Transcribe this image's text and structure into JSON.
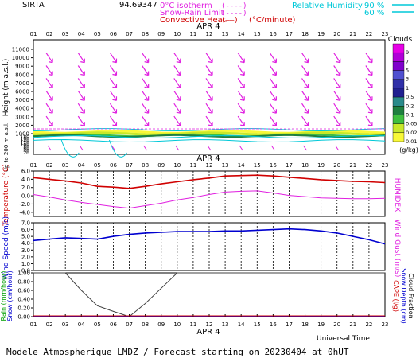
{
  "header": {
    "station": "SIRTA",
    "coords": "94.69347",
    "legend_iso": "0°C isotherm",
    "legend_snow": "Snow-Rain Limit",
    "legend_conv": "Convective Heat.",
    "legend_unit": "(°C/minute)",
    "rh_label": "Relative Humidity",
    "rh90": "90 %",
    "rh60": "60 %",
    "iso_sym": "(----)",
    "snow_sym": "(----)",
    "conv_sym": "(——)"
  },
  "hours": [
    "01",
    "02",
    "03",
    "04",
    "05",
    "06",
    "07",
    "08",
    "09",
    "10",
    "11",
    "12",
    "13",
    "14",
    "15",
    "16",
    "17",
    "18",
    "19",
    "20",
    "21",
    "22",
    "23"
  ],
  "date_label": "APR 4",
  "footer": {
    "title": "Modele Atmospherique LMDZ / Forecast starting on 20230404 at 0hUT",
    "universal_time": "Universal Time"
  },
  "chart_data": [
    {
      "type": "heatmap",
      "name": "clouds-wind-profile",
      "ylabel": "Height (m a.s.l.)",
      "ylabel2": "Up to 200 m a.s.l.",
      "yticks_upper": [
        "11000",
        "10000",
        "9000",
        "8000",
        "7000",
        "6000",
        "5000",
        "4000",
        "3000",
        "2000",
        "1000"
      ],
      "yticks_lower": [
        "180",
        "160",
        "140",
        "120",
        "100",
        "80",
        "60",
        "40",
        "20"
      ],
      "colorbar_title": "Clouds",
      "colorbar_unit": "(g/kg)",
      "colorbar_levels": [
        "9",
        "7",
        "5",
        "3",
        "1",
        "0.5",
        "0.2",
        "0.1",
        "0.05",
        "0.02",
        "0.01"
      ],
      "colorbar_colors": [
        "#e600e6",
        "#b000d8",
        "#7f00cc",
        "#5050d0",
        "#3030a8",
        "#202090",
        "#2a8a8a",
        "#1f7f3f",
        "#3fbf3f",
        "#c8e82a",
        "#f8f838"
      ],
      "wind_rows_m": [
        10000,
        8500,
        7000,
        5500,
        4000,
        2500
      ]
    },
    {
      "type": "line",
      "name": "temperature",
      "ylabel": "Temperature (°C)",
      "ylabel_right": "HUMIDEX",
      "yticks": [
        "6.0",
        "4.0",
        "2.0",
        "0.0",
        "-2.0",
        "-4.0"
      ],
      "ylim": [
        -5,
        6
      ],
      "x": [
        1,
        2,
        3,
        4,
        5,
        6,
        7,
        8,
        9,
        10,
        11,
        12,
        13,
        14,
        15,
        16,
        17,
        18,
        19,
        20,
        21,
        22,
        23
      ],
      "series": [
        {
          "values": [
            4.4,
            4.0,
            3.6,
            3.1,
            2.3,
            2.1,
            1.8,
            2.3,
            2.9,
            3.4,
            3.9,
            4.3,
            4.8,
            4.9,
            5.0,
            4.8,
            4.5,
            4.2,
            3.9,
            3.7,
            3.5,
            3.4,
            3.2
          ]
        },
        {
          "values": [
            0.3,
            -0.3,
            -1.0,
            -1.6,
            -2.1,
            -2.6,
            -3.0,
            -2.4,
            -1.8,
            -1.0,
            -0.4,
            0.3,
            0.9,
            1.1,
            1.2,
            0.7,
            0.1,
            -0.2,
            -0.5,
            -0.6,
            -0.7,
            -0.7,
            -0.6
          ]
        }
      ]
    },
    {
      "type": "line",
      "name": "wind-speed",
      "ylabel": "Wind Speed (m/s)",
      "ylabel_right": "Wind Gust (m/s)",
      "yticks": [
        "7.0",
        "6.0",
        "5.0",
        "4.0",
        "3.0",
        "2.0",
        "1.0",
        "0.0"
      ],
      "ylim": [
        0,
        7
      ],
      "x": [
        1,
        2,
        3,
        4,
        5,
        6,
        7,
        8,
        9,
        10,
        11,
        12,
        13,
        14,
        15,
        16,
        17,
        18,
        19,
        20,
        21,
        22,
        23
      ],
      "series": [
        {
          "values": [
            4.4,
            4.6,
            4.8,
            4.7,
            4.6,
            5.0,
            5.3,
            5.5,
            5.6,
            5.7,
            5.7,
            5.7,
            5.8,
            5.8,
            5.9,
            6.0,
            6.1,
            6.0,
            5.8,
            5.5,
            5.0,
            4.5,
            3.9
          ]
        }
      ]
    },
    {
      "type": "line",
      "name": "precipitation",
      "ylabel": "Rain (mm/hour)",
      "ylabel2": "Snow (cm/hour)",
      "ylabel_right": "CAPE (J/g)",
      "ylabel_right2": "Snow Depth (cm)",
      "ylabel_right3": "Cloud Fraction",
      "yticks": [
        "1.00",
        "0.80",
        "0.60",
        "0.40",
        "0.20",
        "0.00"
      ],
      "ylim": [
        0,
        1
      ],
      "x": [
        1,
        2,
        3,
        4,
        5,
        6,
        7,
        8,
        9,
        10,
        11,
        12,
        13,
        14,
        15,
        16,
        17,
        18,
        19,
        20,
        21,
        22,
        23
      ],
      "series": [
        {
          "values": [
            1.0,
            1.0,
            1.0,
            0.6,
            0.25,
            0.12,
            0.0,
            0.3,
            0.65,
            1.0,
            1.0,
            1.0,
            1.0,
            1.0,
            1.0,
            1.0,
            1.0,
            1.0,
            1.0,
            1.0,
            1.0,
            1.0,
            1.0
          ]
        },
        {
          "values": [
            0,
            0,
            0,
            0,
            0,
            0,
            0,
            0,
            0,
            0,
            0,
            0,
            0,
            0,
            0,
            0,
            0,
            0,
            0,
            0,
            0,
            0,
            0
          ]
        }
      ]
    }
  ]
}
